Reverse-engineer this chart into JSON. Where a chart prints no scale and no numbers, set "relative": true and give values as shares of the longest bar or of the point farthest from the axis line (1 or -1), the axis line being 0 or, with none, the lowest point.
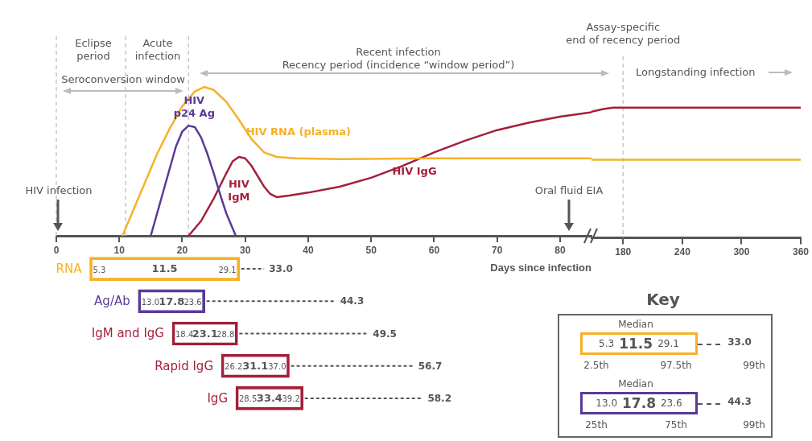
{
  "chart_data": [
    {
      "type": "line",
      "xlabel": "Days since infection",
      "relative": true,
      "xlim": [
        0,
        85
      ],
      "xticks": [
        0,
        10,
        20,
        30,
        40,
        50,
        60,
        70,
        80
      ],
      "series": [
        {
          "name": "HIV RNA (plasma)",
          "color": "#f7b128",
          "x": [
            10.5,
            12,
            14,
            16,
            18,
            20,
            22,
            23.5,
            25,
            27,
            29,
            31,
            33,
            35,
            38,
            45,
            60,
            85
          ],
          "values": [
            0,
            0.15,
            0.35,
            0.55,
            0.72,
            0.87,
            0.97,
            1.0,
            0.98,
            0.9,
            0.78,
            0.65,
            0.56,
            0.53,
            0.52,
            0.515,
            0.52,
            0.52
          ]
        },
        {
          "name": "HIV\np24 Ag",
          "color": "#5b3a98",
          "x": [
            15,
            16,
            17,
            18,
            19,
            20,
            21,
            22,
            23,
            24,
            25,
            26,
            27,
            28,
            28.5
          ],
          "values": [
            0,
            0.15,
            0.3,
            0.45,
            0.6,
            0.7,
            0.74,
            0.73,
            0.66,
            0.55,
            0.42,
            0.28,
            0.15,
            0.05,
            0
          ]
        },
        {
          "name": "HIV\nIgM",
          "color": "#a31f3a",
          "x": [
            21,
            23,
            25,
            27,
            28,
            29,
            30,
            31,
            32,
            33,
            34,
            35
          ],
          "values": [
            0,
            0.1,
            0.25,
            0.42,
            0.5,
            0.53,
            0.52,
            0.47,
            0.4,
            0.33,
            0.28,
            0.26
          ]
        },
        {
          "name": "HIV IgG",
          "color": "#a31f3a",
          "x": [
            35,
            37,
            40,
            45,
            50,
            55,
            60,
            65,
            70,
            75,
            80,
            85
          ],
          "values": [
            0.26,
            0.27,
            0.29,
            0.33,
            0.39,
            0.47,
            0.56,
            0.64,
            0.71,
            0.76,
            0.8,
            0.83
          ]
        }
      ],
      "ref_lines": [
        {
          "axis": "x",
          "value": 0,
          "line_style": "dashed",
          "color": "#c8c8c8"
        },
        {
          "axis": "x",
          "value": 11,
          "line_style": "dashed",
          "color": "#c8c8c8"
        },
        {
          "axis": "x",
          "value": 21,
          "line_style": "dashed",
          "color": "#c8c8c8"
        }
      ],
      "annotations": [
        "Eclipse\nperiod",
        "Acute\ninfection",
        "Seroconversion window",
        "Recent infection\nRecency period (incidence “window period”)",
        "Longstanding infection",
        "HIV infection",
        "Oral fluid EIA"
      ]
    },
    {
      "type": "line",
      "relative": true,
      "xlim": [
        148,
        360
      ],
      "xticks": [
        180,
        240,
        300,
        360
      ],
      "series": [
        {
          "color": "#f7b128",
          "x": [
            148,
            360
          ],
          "values": [
            0.6,
            0.6
          ]
        },
        {
          "color": "#a31f3a",
          "x": [
            148,
            160,
            170,
            180,
            360
          ],
          "values": [
            0.97,
            0.99,
            1,
            1,
            1
          ]
        }
      ],
      "ref_lines": [
        {
          "axis": "x",
          "value": 180,
          "label": "Assay-specific\nend of recency period",
          "line_style": "dashed",
          "color": "#c8c8c8"
        }
      ]
    },
    {
      "type": "box",
      "orientation": "horizontal",
      "categories": [
        "RNA",
        "Ag/Ab",
        "IgM and IgG",
        "Rapid IgG",
        "IgG"
      ],
      "colors": [
        "#f7b128",
        "#5b3a98",
        "#a31f3a",
        "#a31f3a",
        "#a31f3a"
      ],
      "boxes": [
        {
          "low": 5.3,
          "q1": 5.3,
          "q3": 29.1,
          "high": 33.0
        },
        {
          "low": 13.0,
          "q1": 13.0,
          "q3": 23.6,
          "high": 44.3
        },
        {
          "low": 18.4,
          "q1": 18.4,
          "q3": 28.8,
          "high": 49.5
        },
        {
          "low": 26.2,
          "q1": 26.2,
          "q3": 37.0,
          "high": 56.7
        },
        {
          "low": 28.5,
          "q1": 28.5,
          "q3": 39.2,
          "high": 58.2
        }
      ],
      "xlim": [
        0,
        80
      ],
      "xticks": [
        0,
        10,
        20,
        30,
        40,
        50,
        60,
        70,
        80
      ],
      "tick_labels": "y",
      "legend_title": "Key",
      "annotations": [
        "Median",
        "2.5th",
        "97.5th",
        "99th",
        "Median",
        "25th",
        "75th",
        "99th",
        "5.3",
        "11.5",
        "29.1",
        "33.0",
        "13.0",
        "17.8",
        "23.6",
        "44.3",
        {
          "text": "5.3",
          "x": 5.3,
          "y": "RNA"
        },
        "11.5",
        {
          "text": "29.1",
          "x": 29.1,
          "y": "RNA"
        },
        {
          "text": "33.0",
          "x": 33.0,
          "y": "RNA"
        },
        {
          "text": "13.0",
          "x": 13.0,
          "y": "Ag/Ab"
        },
        "17.8",
        {
          "text": "23.6",
          "x": 23.6,
          "y": "Ag/Ab"
        },
        {
          "text": "44.3",
          "x": 44.3,
          "y": "Ag/Ab"
        },
        {
          "text": "18.4",
          "x": 18.4,
          "y": "IgM and IgG"
        },
        "23.1",
        {
          "text": "28.8",
          "x": 28.8,
          "y": "IgM and IgG"
        },
        {
          "text": "49.5",
          "x": 49.5,
          "y": "IgM and IgG"
        },
        {
          "text": "26.2",
          "x": 26.2,
          "y": "Rapid IgG"
        },
        "31.1",
        {
          "text": "37.0",
          "x": 37.0,
          "y": "Rapid IgG"
        },
        {
          "text": "56.7",
          "x": 56.7,
          "y": "Rapid IgG"
        },
        {
          "text": "28.5",
          "x": 28.5,
          "y": "IgG"
        },
        "33.4",
        {
          "text": "39.2",
          "x": 39.2,
          "y": "IgG"
        },
        {
          "text": "58.2",
          "x": 58.2,
          "y": "IgG"
        }
      ]
    }
  ]
}
